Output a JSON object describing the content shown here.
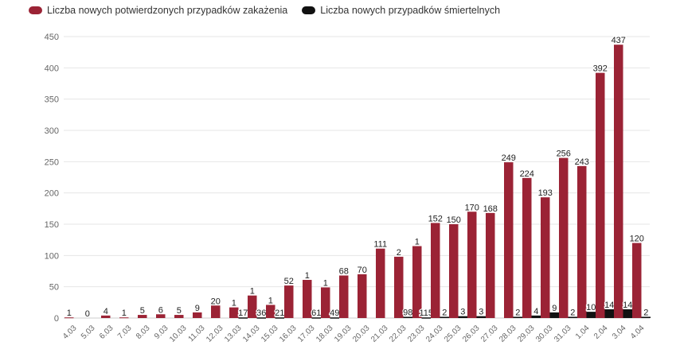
{
  "chart_data": {
    "type": "bar",
    "categories": [
      "4.03",
      "5.03",
      "6.03",
      "7.03",
      "8.03",
      "9.03",
      "10.03",
      "11.03",
      "12.03",
      "13.03",
      "14.03",
      "15.03",
      "16.03",
      "17.03",
      "18.03",
      "19.03",
      "20.03",
      "21.03",
      "22.03",
      "23.03",
      "24.03",
      "25.03",
      "26.03",
      "27.03",
      "28.03",
      "29.03",
      "30.03",
      "31.03",
      "1.04",
      "2.04",
      "3.04",
      "4.04"
    ],
    "series": [
      {
        "name": "Liczba nowych potwierdzonych przypadków zakażenia",
        "color": "#9b2335",
        "values": [
          1,
          0,
          4,
          1,
          5,
          6,
          5,
          9,
          20,
          17,
          36,
          21,
          52,
          61,
          49,
          68,
          70,
          111,
          98,
          115,
          152,
          150,
          170,
          168,
          249,
          224,
          193,
          256,
          243,
          392,
          437,
          120
        ]
      },
      {
        "name": "Liczba nowych przypadków śmiertelnych",
        "color": "#111111",
        "values": [
          0,
          0,
          0,
          0,
          0,
          0,
          0,
          0,
          0,
          1,
          1,
          1,
          0,
          1,
          1,
          0,
          0,
          0,
          2,
          1,
          2,
          3,
          3,
          0,
          2,
          4,
          9,
          2,
          10,
          14,
          14,
          2
        ]
      }
    ],
    "value_labels": [
      "1",
      "0",
      "4",
      "1",
      "5",
      "6",
      "5",
      "9",
      "20",
      "1",
      "17",
      "1",
      "36",
      "1",
      "21",
      "52",
      "1",
      "61",
      "1",
      "49",
      "68",
      "70",
      "111",
      "2",
      "98",
      "1",
      "115",
      "152",
      "2",
      "150",
      "3",
      "170",
      "3",
      "168",
      "249",
      "2",
      "224",
      "4",
      "193",
      "9",
      "256",
      "2",
      "243",
      "10",
      "392",
      "14",
      "437",
      "14",
      "120",
      "2"
    ],
    "ylim": [
      0,
      450
    ],
    "yticks": [
      0,
      50,
      100,
      150,
      200,
      250,
      300,
      350,
      400,
      450
    ],
    "grid": true,
    "legend_position": "top-left",
    "title": "",
    "xlabel": "",
    "ylabel": ""
  }
}
